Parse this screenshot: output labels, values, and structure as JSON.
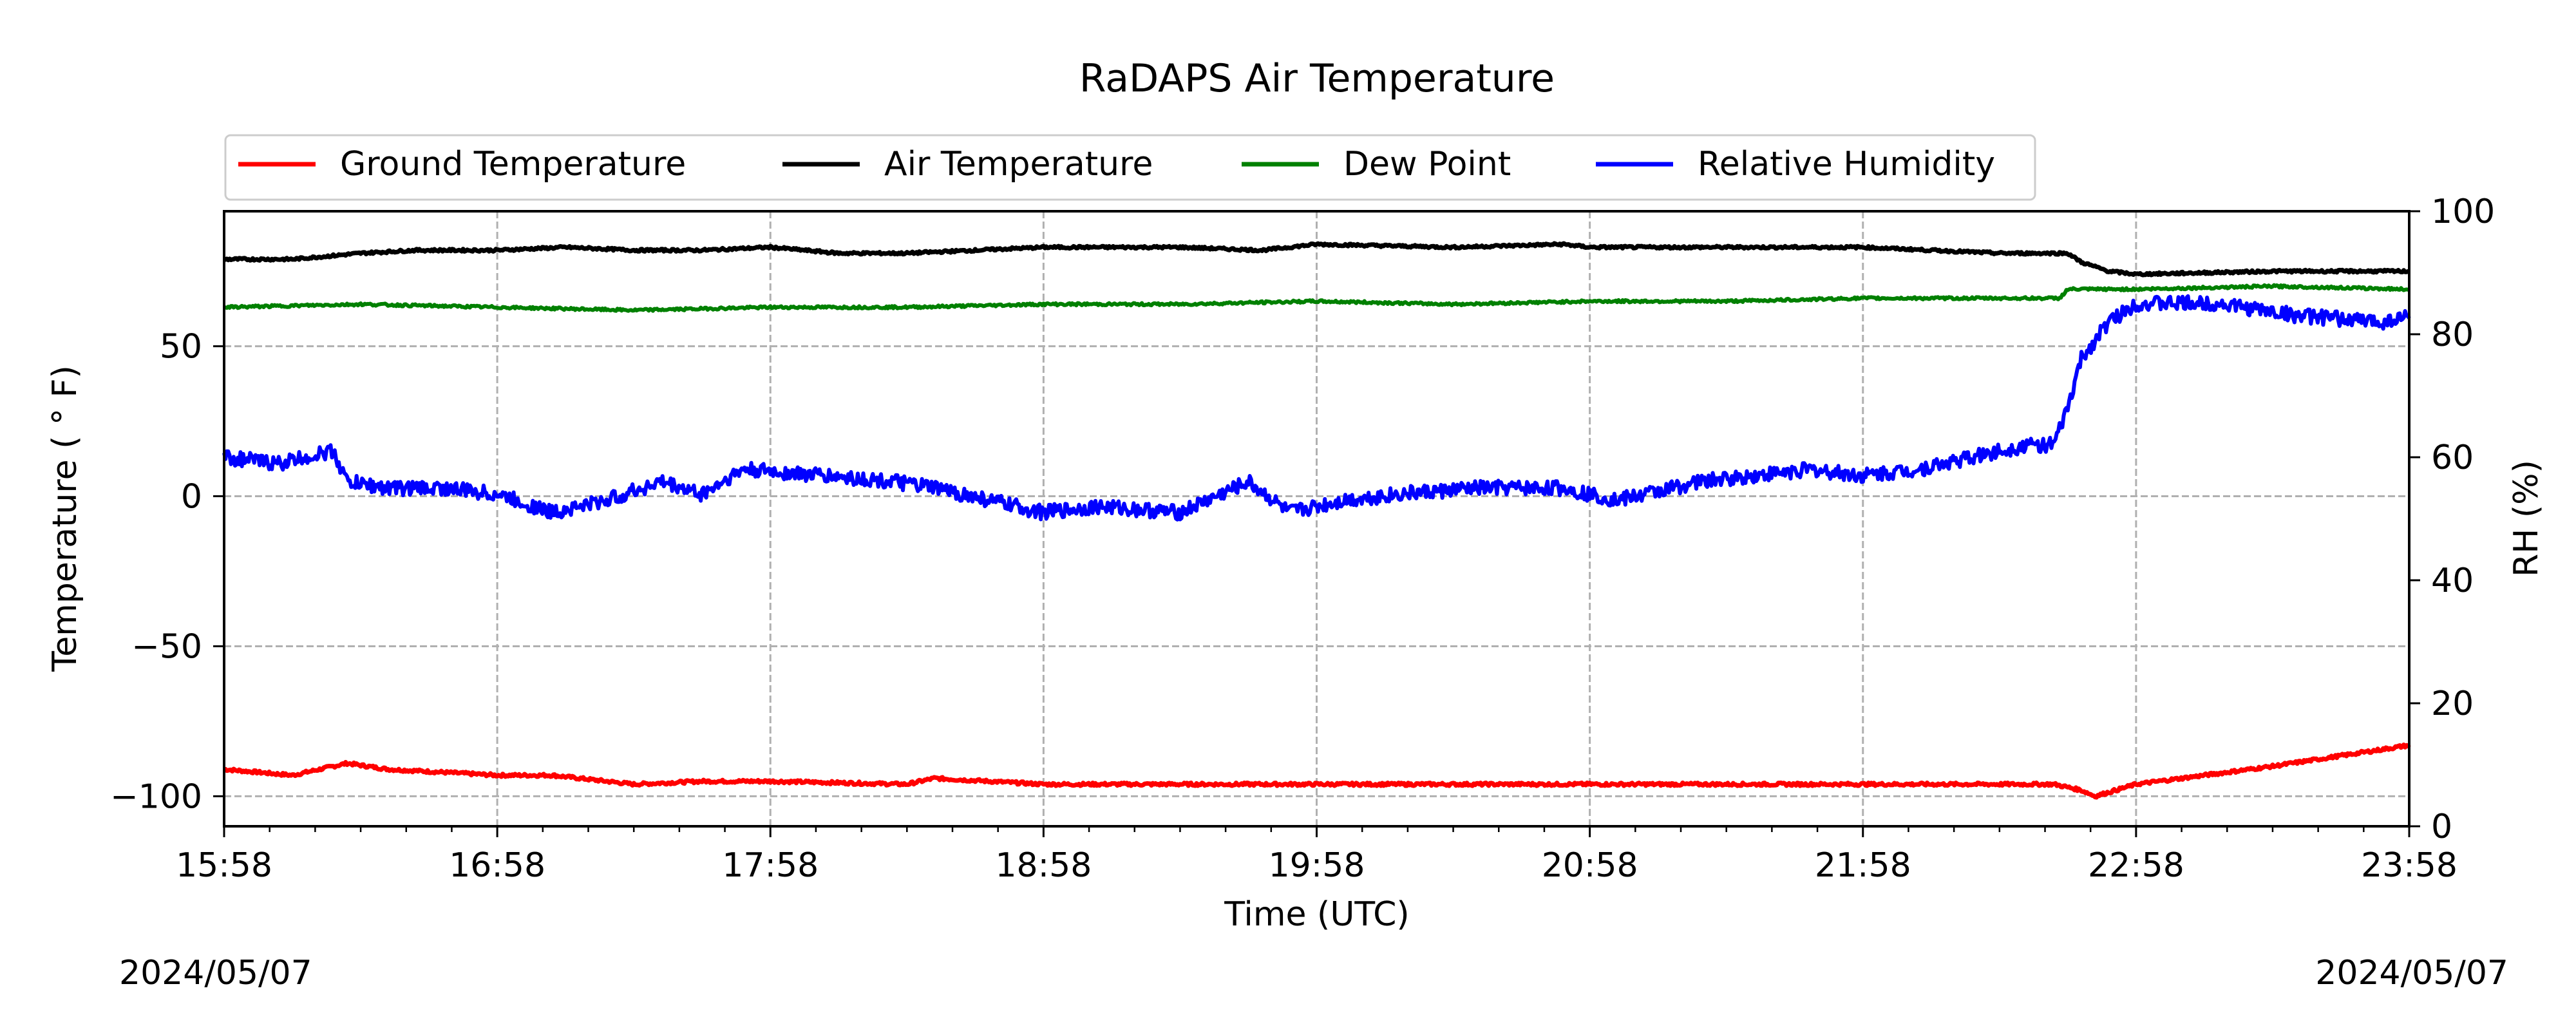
{
  "chart_data": {
    "type": "line",
    "title": "RaDAPS Air Temperature",
    "xlabel": "Time (UTC)",
    "ylabel": "Temperature ($^\\circ$F)",
    "ylabel_display": "Temperature ( ° F)",
    "y2label": "RH (%)",
    "footer_left": "2024/05/07",
    "footer_right": "2024/05/07",
    "x_unit": "hours after 15:58 UTC",
    "xlim": [
      0,
      8
    ],
    "ylim": [
      -110,
      95
    ],
    "y2lim": [
      0,
      100
    ],
    "x_ticks": [
      0,
      1,
      2,
      3,
      4,
      5,
      6,
      7,
      8
    ],
    "x_tick_labels": [
      "15:58",
      "16:58",
      "17:58",
      "18:58",
      "19:58",
      "20:58",
      "21:58",
      "22:58",
      "23:58"
    ],
    "y_ticks": [
      50,
      0,
      -50,
      -100
    ],
    "y_tick_labels": [
      "50",
      "0",
      "−50",
      "−100"
    ],
    "y2_ticks": [
      0,
      20,
      40,
      60,
      80,
      100
    ],
    "y2_tick_labels": [
      "0",
      "20",
      "40",
      "60",
      "80",
      "100"
    ],
    "grid": true,
    "legend_position": "top, above plot",
    "series": [
      {
        "name": "Ground Temperature",
        "color": "#ff0000",
        "axis": "left",
        "x": [
          0,
          0.25,
          0.45,
          0.6,
          0.8,
          1.0,
          1.2,
          1.5,
          1.75,
          2.0,
          2.5,
          2.6,
          3.0,
          3.5,
          4.0,
          4.5,
          5.0,
          5.5,
          6.0,
          6.5,
          6.7,
          6.8,
          6.85,
          7.0,
          7.5,
          8.0
        ],
        "y": [
          -91,
          -93,
          -89,
          -91,
          -92,
          -93,
          -93,
          -96,
          -95,
          -95,
          -96,
          -94,
          -96,
          -96,
          -96,
          -96,
          -96,
          -96,
          -96,
          -96,
          -96,
          -98,
          -100,
          -96,
          -90,
          -83
        ]
      },
      {
        "name": "Air Temperature",
        "color": "#000000",
        "axis": "left",
        "x": [
          0,
          0.25,
          0.5,
          0.7,
          1.0,
          1.25,
          1.5,
          1.75,
          2.0,
          2.25,
          2.5,
          3.0,
          3.5,
          3.8,
          4.0,
          4.5,
          4.9,
          5.0,
          5.5,
          6.0,
          6.5,
          6.75,
          6.8,
          6.9,
          7.0,
          7.5,
          8.0
        ],
        "y": [
          79,
          79,
          81,
          82,
          82,
          83,
          82,
          82,
          83,
          81,
          81,
          83,
          83,
          82,
          84,
          83,
          84,
          83,
          83,
          83,
          81,
          81,
          78,
          75,
          74,
          75,
          75
        ]
      },
      {
        "name": "Dew Point",
        "color": "#008000",
        "axis": "left",
        "x": [
          0,
          0.5,
          1.0,
          1.5,
          2.0,
          2.5,
          3.0,
          3.5,
          4.0,
          4.5,
          5.0,
          5.5,
          6.0,
          6.5,
          6.72,
          6.75,
          7.0,
          7.5,
          8.0
        ],
        "y": [
          63,
          64,
          63,
          62,
          63,
          63,
          64,
          64,
          65,
          64,
          65,
          65,
          66,
          66,
          66,
          69,
          69,
          70,
          69
        ]
      },
      {
        "name": "Relative Humidity",
        "color": "#0000ff",
        "axis": "right",
        "x": [
          0,
          0.2,
          0.4,
          0.45,
          0.6,
          0.8,
          1.0,
          1.2,
          1.4,
          1.6,
          1.75,
          1.9,
          2.2,
          2.45,
          2.6,
          2.8,
          3.0,
          3.2,
          3.5,
          3.75,
          3.9,
          4.1,
          4.3,
          4.6,
          4.9,
          5.0,
          5.1,
          5.4,
          5.6,
          5.8,
          6.0,
          6.2,
          6.4,
          6.5,
          6.6,
          6.7,
          6.75,
          6.8,
          6.9,
          7.0,
          7.3,
          7.6,
          7.9,
          8.0
        ],
        "y": [
          60,
          59,
          61,
          56,
          55,
          55,
          54,
          51,
          53,
          56,
          54,
          58,
          57,
          56,
          55,
          53,
          51,
          52,
          51,
          56,
          51,
          53,
          54,
          55,
          55,
          54,
          53,
          56,
          57,
          58,
          57,
          58,
          60,
          61,
          62,
          62,
          68,
          76,
          82,
          85,
          85,
          83,
          82,
          83
        ]
      }
    ]
  }
}
